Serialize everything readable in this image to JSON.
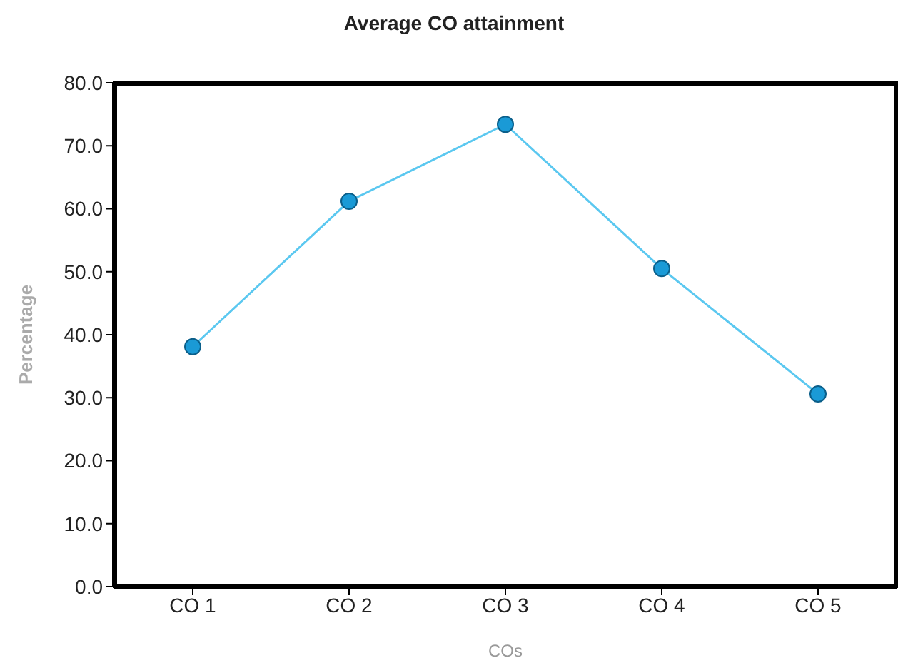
{
  "chart_data": {
    "type": "line",
    "title": "Average CO attainment",
    "xlabel": "COs",
    "ylabel": "Percentage",
    "categories": [
      "CO 1",
      "CO 2",
      "CO 3",
      "CO 4",
      "CO 5"
    ],
    "series": [
      {
        "color": "#5bc8f0",
        "values": [
          38.1,
          61.2,
          73.4,
          50.5,
          30.6
        ]
      }
    ],
    "ylim": [
      0,
      80
    ],
    "yticks": [
      {
        "value": 0,
        "label": "0.0"
      },
      {
        "value": 10,
        "label": "10.0"
      },
      {
        "value": 20,
        "label": "20.0"
      },
      {
        "value": 30,
        "label": "30.0"
      },
      {
        "value": 40,
        "label": "40.0"
      },
      {
        "value": 50,
        "label": "50.0"
      },
      {
        "value": 60,
        "label": "60.0"
      },
      {
        "value": 70,
        "label": "70.0"
      },
      {
        "value": 80,
        "label": "80.0"
      }
    ],
    "grid": false,
    "legend": false,
    "marker": "circle",
    "line_style": "solid"
  }
}
